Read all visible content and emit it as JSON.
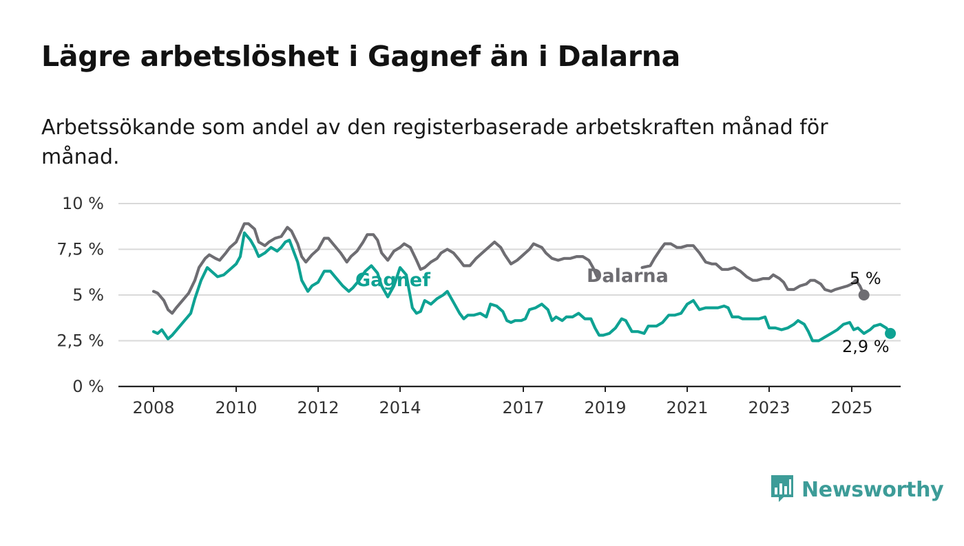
{
  "title": "Lägre arbetslöshet i Gagnef än i Dalarna",
  "subtitle": "Arbetssökande som andel av den registerbaserade arbetskraften månad för månad.",
  "brand": {
    "name": "Newsworthy",
    "color": "#3d9c98",
    "icon": "bar-chart-speech-bubble-icon"
  },
  "chart_data": {
    "type": "line",
    "xlim": [
      2008,
      2025.4
    ],
    "ylim": [
      0,
      10
    ],
    "grid": true,
    "xticks": [
      {
        "value": 2008,
        "label": "2008"
      },
      {
        "value": 2010,
        "label": "2010"
      },
      {
        "value": 2012,
        "label": "2012"
      },
      {
        "value": 2014,
        "label": "2014"
      },
      {
        "value": 2017,
        "label": "2017"
      },
      {
        "value": 2019,
        "label": "2019"
      },
      {
        "value": 2021,
        "label": "2021"
      },
      {
        "value": 2023,
        "label": "2023"
      },
      {
        "value": 2025,
        "label": "2025"
      }
    ],
    "yticks": [
      {
        "value": 0,
        "label": "0 %"
      },
      {
        "value": 2.5,
        "label": "2,5 %"
      },
      {
        "value": 5,
        "label": "5 %"
      },
      {
        "value": 7.5,
        "label": "7,5 %"
      },
      {
        "value": 10,
        "label": "10 %"
      }
    ],
    "series": [
      {
        "name": "Dalarna",
        "color": "#6e6d72",
        "end_label": "5 %",
        "points": [
          [
            2008.0,
            5.2
          ],
          [
            2008.1,
            5.1
          ],
          [
            2008.25,
            4.7
          ],
          [
            2008.35,
            4.2
          ],
          [
            2008.45,
            4.0
          ],
          [
            2008.55,
            4.3
          ],
          [
            2008.7,
            4.7
          ],
          [
            2008.85,
            5.1
          ],
          [
            2009.0,
            5.8
          ],
          [
            2009.1,
            6.5
          ],
          [
            2009.25,
            7.0
          ],
          [
            2009.35,
            7.2
          ],
          [
            2009.5,
            7.0
          ],
          [
            2009.6,
            6.9
          ],
          [
            2009.75,
            7.3
          ],
          [
            2009.85,
            7.6
          ],
          [
            2010.0,
            7.9
          ],
          [
            2010.1,
            8.4
          ],
          [
            2010.2,
            8.9
          ],
          [
            2010.3,
            8.9
          ],
          [
            2010.45,
            8.6
          ],
          [
            2010.55,
            7.9
          ],
          [
            2010.7,
            7.7
          ],
          [
            2010.8,
            7.9
          ],
          [
            2010.95,
            8.1
          ],
          [
            2011.1,
            8.2
          ],
          [
            2011.25,
            8.7
          ],
          [
            2011.35,
            8.5
          ],
          [
            2011.5,
            7.8
          ],
          [
            2011.6,
            7.1
          ],
          [
            2011.7,
            6.8
          ],
          [
            2011.85,
            7.2
          ],
          [
            2012.0,
            7.5
          ],
          [
            2012.15,
            8.1
          ],
          [
            2012.25,
            8.1
          ],
          [
            2012.4,
            7.7
          ],
          [
            2012.55,
            7.3
          ],
          [
            2012.7,
            6.8
          ],
          [
            2012.8,
            7.1
          ],
          [
            2012.95,
            7.4
          ],
          [
            2013.1,
            7.9
          ],
          [
            2013.2,
            8.3
          ],
          [
            2013.35,
            8.3
          ],
          [
            2013.45,
            8.0
          ],
          [
            2013.55,
            7.3
          ],
          [
            2013.7,
            6.9
          ],
          [
            2013.85,
            7.4
          ],
          [
            2014.0,
            7.6
          ],
          [
            2014.1,
            7.8
          ],
          [
            2014.25,
            7.6
          ],
          [
            2014.4,
            6.9
          ],
          [
            2014.5,
            6.4
          ],
          [
            2014.6,
            6.5
          ],
          [
            2014.75,
            6.8
          ],
          [
            2014.9,
            7.0
          ],
          [
            2015.0,
            7.3
          ],
          [
            2015.15,
            7.5
          ],
          [
            2015.3,
            7.3
          ],
          [
            2015.45,
            6.9
          ],
          [
            2015.55,
            6.6
          ],
          [
            2015.7,
            6.6
          ],
          [
            2015.85,
            7.0
          ],
          [
            2016.0,
            7.3
          ],
          [
            2016.2,
            7.7
          ],
          [
            2016.3,
            7.9
          ],
          [
            2016.45,
            7.6
          ],
          [
            2016.55,
            7.2
          ],
          [
            2016.7,
            6.7
          ],
          [
            2016.85,
            6.9
          ],
          [
            2017.0,
            7.2
          ],
          [
            2017.15,
            7.5
          ],
          [
            2017.25,
            7.8
          ],
          [
            2017.35,
            7.7
          ],
          [
            2017.45,
            7.6
          ],
          [
            2017.55,
            7.3
          ],
          [
            2017.7,
            7.0
          ],
          [
            2017.85,
            6.9
          ],
          [
            2018.0,
            7.0
          ],
          [
            2018.15,
            7.0
          ],
          [
            2018.3,
            7.1
          ],
          [
            2018.45,
            7.1
          ],
          [
            2018.6,
            6.9
          ],
          [
            2018.7,
            6.5
          ],
          [
            2018.8,
            6.0
          ],
          [
            2019.9,
            6.5
          ],
          [
            2020.1,
            6.6
          ],
          [
            2020.2,
            7.0
          ],
          [
            2020.35,
            7.5
          ],
          [
            2020.45,
            7.8
          ],
          [
            2020.6,
            7.8
          ],
          [
            2020.75,
            7.6
          ],
          [
            2020.85,
            7.6
          ],
          [
            2021.0,
            7.7
          ],
          [
            2021.15,
            7.7
          ],
          [
            2021.3,
            7.3
          ],
          [
            2021.45,
            6.8
          ],
          [
            2021.6,
            6.7
          ],
          [
            2021.7,
            6.7
          ],
          [
            2021.85,
            6.4
          ],
          [
            2022.0,
            6.4
          ],
          [
            2022.15,
            6.5
          ],
          [
            2022.3,
            6.3
          ],
          [
            2022.45,
            6.0
          ],
          [
            2022.6,
            5.8
          ],
          [
            2022.7,
            5.8
          ],
          [
            2022.85,
            5.9
          ],
          [
            2023.0,
            5.9
          ],
          [
            2023.1,
            6.1
          ],
          [
            2023.25,
            5.9
          ],
          [
            2023.35,
            5.7
          ],
          [
            2023.45,
            5.3
          ],
          [
            2023.6,
            5.3
          ],
          [
            2023.75,
            5.5
          ],
          [
            2023.9,
            5.6
          ],
          [
            2024.0,
            5.8
          ],
          [
            2024.1,
            5.8
          ],
          [
            2024.25,
            5.6
          ],
          [
            2024.35,
            5.3
          ],
          [
            2024.5,
            5.2
          ],
          [
            2024.6,
            5.3
          ],
          [
            2024.75,
            5.4
          ],
          [
            2024.9,
            5.5
          ],
          [
            2025.0,
            5.6
          ],
          [
            2025.1,
            5.8
          ],
          [
            2025.2,
            5.5
          ],
          [
            2025.3,
            5.0
          ]
        ]
      },
      {
        "name": "Gagnef",
        "color": "#0ea293",
        "end_label": "2,9 %",
        "points": [
          [
            2008.0,
            3.0
          ],
          [
            2008.1,
            2.9
          ],
          [
            2008.2,
            3.1
          ],
          [
            2008.35,
            2.6
          ],
          [
            2008.45,
            2.8
          ],
          [
            2008.6,
            3.2
          ],
          [
            2008.75,
            3.6
          ],
          [
            2008.9,
            4.0
          ],
          [
            2009.0,
            4.8
          ],
          [
            2009.15,
            5.8
          ],
          [
            2009.3,
            6.5
          ],
          [
            2009.4,
            6.3
          ],
          [
            2009.55,
            6.0
          ],
          [
            2009.7,
            6.1
          ],
          [
            2009.85,
            6.4
          ],
          [
            2010.0,
            6.7
          ],
          [
            2010.1,
            7.1
          ],
          [
            2010.2,
            8.4
          ],
          [
            2010.35,
            8.0
          ],
          [
            2010.45,
            7.6
          ],
          [
            2010.55,
            7.1
          ],
          [
            2010.7,
            7.3
          ],
          [
            2010.85,
            7.6
          ],
          [
            2011.0,
            7.4
          ],
          [
            2011.1,
            7.6
          ],
          [
            2011.2,
            7.9
          ],
          [
            2011.3,
            8.0
          ],
          [
            2011.4,
            7.4
          ],
          [
            2011.5,
            6.8
          ],
          [
            2011.6,
            5.8
          ],
          [
            2011.75,
            5.2
          ],
          [
            2011.85,
            5.5
          ],
          [
            2012.0,
            5.7
          ],
          [
            2012.15,
            6.3
          ],
          [
            2012.3,
            6.3
          ],
          [
            2012.45,
            5.9
          ],
          [
            2012.6,
            5.5
          ],
          [
            2012.75,
            5.2
          ],
          [
            2012.85,
            5.4
          ],
          [
            2013.0,
            5.8
          ],
          [
            2013.15,
            6.3
          ],
          [
            2013.3,
            6.6
          ],
          [
            2013.45,
            6.2
          ],
          [
            2013.55,
            5.5
          ],
          [
            2013.7,
            4.9
          ],
          [
            2013.85,
            5.5
          ],
          [
            2014.0,
            6.5
          ],
          [
            2014.15,
            6.1
          ],
          [
            2014.3,
            4.3
          ],
          [
            2014.4,
            4.0
          ],
          [
            2014.5,
            4.1
          ],
          [
            2014.6,
            4.7
          ],
          [
            2014.75,
            4.5
          ],
          [
            2014.9,
            4.8
          ],
          [
            2015.05,
            5.0
          ],
          [
            2015.15,
            5.2
          ],
          [
            2015.3,
            4.6
          ],
          [
            2015.45,
            4.0
          ],
          [
            2015.55,
            3.7
          ],
          [
            2015.65,
            3.9
          ],
          [
            2015.8,
            3.9
          ],
          [
            2015.95,
            4.0
          ],
          [
            2016.1,
            3.8
          ],
          [
            2016.2,
            4.5
          ],
          [
            2016.35,
            4.4
          ],
          [
            2016.5,
            4.1
          ],
          [
            2016.6,
            3.6
          ],
          [
            2016.7,
            3.5
          ],
          [
            2016.8,
            3.6
          ],
          [
            2016.95,
            3.6
          ],
          [
            2017.05,
            3.7
          ],
          [
            2017.15,
            4.2
          ],
          [
            2017.3,
            4.3
          ],
          [
            2017.45,
            4.5
          ],
          [
            2017.6,
            4.2
          ],
          [
            2017.7,
            3.6
          ],
          [
            2017.8,
            3.8
          ],
          [
            2017.95,
            3.6
          ],
          [
            2018.05,
            3.8
          ],
          [
            2018.2,
            3.8
          ],
          [
            2018.35,
            4.0
          ],
          [
            2018.5,
            3.7
          ],
          [
            2018.65,
            3.7
          ],
          [
            2018.75,
            3.2
          ],
          [
            2018.85,
            2.8
          ],
          [
            2018.95,
            2.8
          ],
          [
            2019.1,
            2.9
          ],
          [
            2019.25,
            3.2
          ],
          [
            2019.4,
            3.7
          ],
          [
            2019.5,
            3.6
          ],
          [
            2019.65,
            3.0
          ],
          [
            2019.8,
            3.0
          ],
          [
            2019.95,
            2.9
          ],
          [
            2020.05,
            3.3
          ],
          [
            2020.25,
            3.3
          ],
          [
            2020.4,
            3.5
          ],
          [
            2020.55,
            3.9
          ],
          [
            2020.7,
            3.9
          ],
          [
            2020.85,
            4.0
          ],
          [
            2021.0,
            4.5
          ],
          [
            2021.15,
            4.7
          ],
          [
            2021.3,
            4.2
          ],
          [
            2021.45,
            4.3
          ],
          [
            2021.6,
            4.3
          ],
          [
            2021.75,
            4.3
          ],
          [
            2021.9,
            4.4
          ],
          [
            2022.0,
            4.3
          ],
          [
            2022.1,
            3.8
          ],
          [
            2022.25,
            3.8
          ],
          [
            2022.35,
            3.7
          ],
          [
            2022.5,
            3.7
          ],
          [
            2022.6,
            3.7
          ],
          [
            2022.75,
            3.7
          ],
          [
            2022.9,
            3.8
          ],
          [
            2023.0,
            3.2
          ],
          [
            2023.15,
            3.2
          ],
          [
            2023.3,
            3.1
          ],
          [
            2023.45,
            3.2
          ],
          [
            2023.6,
            3.4
          ],
          [
            2023.7,
            3.6
          ],
          [
            2023.85,
            3.4
          ],
          [
            2023.95,
            3.0
          ],
          [
            2024.05,
            2.5
          ],
          [
            2024.2,
            2.5
          ],
          [
            2024.35,
            2.7
          ],
          [
            2024.5,
            2.9
          ],
          [
            2024.65,
            3.1
          ],
          [
            2024.8,
            3.4
          ],
          [
            2024.95,
            3.5
          ],
          [
            2025.05,
            3.1
          ],
          [
            2025.15,
            3.2
          ],
          [
            2025.3,
            2.9
          ],
          [
            2025.45,
            3.1
          ],
          [
            2025.55,
            3.3
          ],
          [
            2025.7,
            3.4
          ],
          [
            2025.85,
            3.2
          ],
          [
            2025.95,
            2.9
          ]
        ]
      }
    ]
  }
}
